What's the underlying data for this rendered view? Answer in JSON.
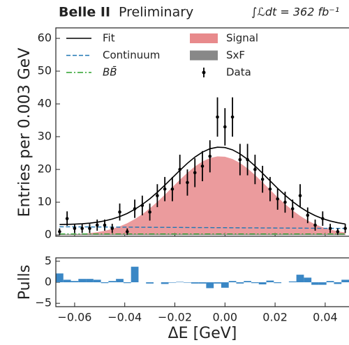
{
  "chart_data": [
    {
      "type": "line",
      "title": "Belle II",
      "subtitle": "Preliminary",
      "annotation": "∫ℒdt = 362 fb⁻¹",
      "y_label": "Entries per 0.003 GeV",
      "x": [
        -0.066,
        -0.063,
        -0.06,
        -0.057,
        -0.054,
        -0.051,
        -0.048,
        -0.045,
        -0.042,
        -0.039,
        -0.036,
        -0.033,
        -0.03,
        -0.027,
        -0.024,
        -0.021,
        -0.018,
        -0.015,
        -0.012,
        -0.009,
        -0.006,
        -0.003,
        0.0,
        0.003,
        0.006,
        0.009,
        0.012,
        0.015,
        0.018,
        0.021,
        0.024,
        0.027,
        0.03,
        0.033,
        0.036,
        0.039,
        0.042,
        0.045,
        0.048
      ],
      "xlim": [
        -0.0675,
        0.0495
      ],
      "xticks": [
        -0.06,
        -0.04,
        -0.02,
        0,
        0.02,
        0.04
      ],
      "ylim": [
        -0.4,
        63.2
      ],
      "yticks": [
        0,
        10,
        20,
        30,
        40,
        50,
        60
      ],
      "series": [
        {
          "name": "Signal",
          "color": "#e88a8c",
          "style": "area",
          "values": [
            0.08,
            0.14,
            0.23,
            0.36,
            0.56,
            0.86,
            1.28,
            1.86,
            2.61,
            3.59,
            4.85,
            6.34,
            8.1,
            10.1,
            12.28,
            14.56,
            16.83,
            18.99,
            20.9,
            22.42,
            23.47,
            23.97,
            23.87,
            23.18,
            21.96,
            20.3,
            18.29,
            16.09,
            13.79,
            11.52,
            9.41,
            7.49,
            5.81,
            4.4,
            3.25,
            2.34,
            1.64,
            1.12,
            0.75
          ]
        },
        {
          "name": "SxF",
          "color": "#888888",
          "style": "area",
          "values": [
            0.3,
            0.3,
            0.3,
            0.3,
            0.3,
            0.3,
            0.3,
            0.3,
            0.3,
            0.3,
            0.3,
            0.3,
            0.3,
            0.3,
            0.3,
            0.3,
            0.3,
            0.3,
            0.3,
            0.3,
            0.3,
            0.3,
            0.3,
            0.3,
            0.3,
            0.3,
            0.3,
            0.3,
            0.3,
            0.3,
            0.3,
            0.3,
            0.3,
            0.3,
            0.3,
            0.3,
            0.3,
            0.3,
            0.3
          ]
        },
        {
          "name": "BB̄",
          "color": "#2ca02c",
          "style": "dashdot",
          "values": [
            0.3,
            0.3,
            0.3,
            0.3,
            0.3,
            0.3,
            0.3,
            0.3,
            0.3,
            0.3,
            0.3,
            0.3,
            0.3,
            0.3,
            0.3,
            0.3,
            0.3,
            0.3,
            0.3,
            0.3,
            0.3,
            0.3,
            0.3,
            0.3,
            0.3,
            0.3,
            0.3,
            0.3,
            0.3,
            0.3,
            0.3,
            0.3,
            0.3,
            0.3,
            0.3,
            0.3,
            0.3,
            0.3,
            0.3
          ]
        },
        {
          "name": "Continuum",
          "color": "#1f77b4",
          "style": "dashed",
          "values": [
            2.5,
            2.49,
            2.47,
            2.46,
            2.45,
            2.43,
            2.42,
            2.41,
            2.39,
            2.38,
            2.37,
            2.36,
            2.34,
            2.33,
            2.32,
            2.3,
            2.29,
            2.28,
            2.26,
            2.25,
            2.24,
            2.22,
            2.21,
            2.2,
            2.18,
            2.17,
            2.16,
            2.14,
            2.13,
            2.12,
            2.11,
            2.09,
            2.08,
            2.07,
            2.05,
            2.04,
            2.03,
            2.01,
            2.0
          ]
        },
        {
          "name": "Fit",
          "color": "#000000",
          "style": "solid",
          "values": [
            3.18,
            3.23,
            3.3,
            3.42,
            3.61,
            3.89,
            4.3,
            4.87,
            5.6,
            6.57,
            7.82,
            9.3,
            11.04,
            13.03,
            15.2,
            17.46,
            19.72,
            21.87,
            23.76,
            25.27,
            26.31,
            26.79,
            26.68,
            25.98,
            24.74,
            23.07,
            21.05,
            18.83,
            16.52,
            14.24,
            12.12,
            10.18,
            8.49,
            7.07,
            5.9,
            4.98,
            4.27,
            3.73,
            3.35
          ]
        },
        {
          "name": "Data",
          "color": "#000000",
          "style": "errorbar",
          "values": [
            1,
            5,
            2,
            2,
            2,
            3,
            3,
            2,
            7,
            1,
            8,
            9,
            7,
            12,
            14,
            14,
            20,
            16,
            19,
            21,
            24,
            36,
            33,
            36,
            23,
            23,
            20,
            17,
            14,
            11,
            10,
            8,
            12,
            6,
            3,
            5,
            2,
            1,
            2
          ],
          "errors": [
            1,
            2.2,
            1.4,
            1.4,
            1.4,
            1.7,
            1.7,
            1.4,
            2.6,
            1,
            2.8,
            3,
            2.6,
            3.5,
            3.7,
            3.7,
            4.5,
            4,
            4.4,
            4.6,
            4.9,
            6,
            5.7,
            6,
            4.8,
            4.8,
            4.5,
            4.1,
            3.7,
            3.3,
            3.2,
            2.8,
            3.5,
            2.4,
            1.7,
            2.2,
            1.4,
            1,
            1.4
          ]
        }
      ]
    },
    {
      "type": "bar",
      "y_label": "Pulls",
      "x_label": "ΔE [GeV]",
      "x": [
        -0.066,
        -0.063,
        -0.06,
        -0.057,
        -0.054,
        -0.051,
        -0.048,
        -0.045,
        -0.042,
        -0.039,
        -0.036,
        -0.033,
        -0.03,
        -0.027,
        -0.024,
        -0.021,
        -0.018,
        -0.015,
        -0.012,
        -0.009,
        -0.006,
        -0.003,
        0.0,
        0.003,
        0.006,
        0.009,
        0.012,
        0.015,
        0.018,
        0.021,
        0.024,
        0.027,
        0.03,
        0.033,
        0.036,
        0.039,
        0.042,
        0.045,
        0.048
      ],
      "bin_width": 0.003,
      "color": "#3a87c5",
      "values": [
        2.1,
        0.6,
        0.3,
        0.8,
        0.8,
        0.6,
        -0.2,
        0.3,
        0.8,
        -0.2,
        3.7,
        0,
        -0.3,
        0,
        -0.4,
        -0.1,
        0.1,
        -0.1,
        -0.3,
        -0.3,
        -1.4,
        -0.3,
        -1.3,
        0.3,
        -0.3,
        0.3,
        -0.2,
        -0.5,
        0.4,
        -0.2,
        0,
        0.2,
        1.8,
        1.1,
        -0.6,
        -0.6,
        0.3,
        -0.4,
        0.6
      ],
      "xlim": [
        -0.0675,
        0.0495
      ],
      "xticks": [
        {
          "value": -0.06,
          "label": "−0.06"
        },
        {
          "value": -0.04,
          "label": "−0.04"
        },
        {
          "value": -0.02,
          "label": "−0.02"
        },
        {
          "value": 0,
          "label": "0.00"
        },
        {
          "value": 0.02,
          "label": "0.02"
        },
        {
          "value": 0.04,
          "label": "0.04"
        }
      ],
      "ylim": [
        -5.8,
        5.8
      ],
      "yticks": [
        {
          "value": -5,
          "label": "−5"
        },
        0,
        5
      ]
    }
  ]
}
